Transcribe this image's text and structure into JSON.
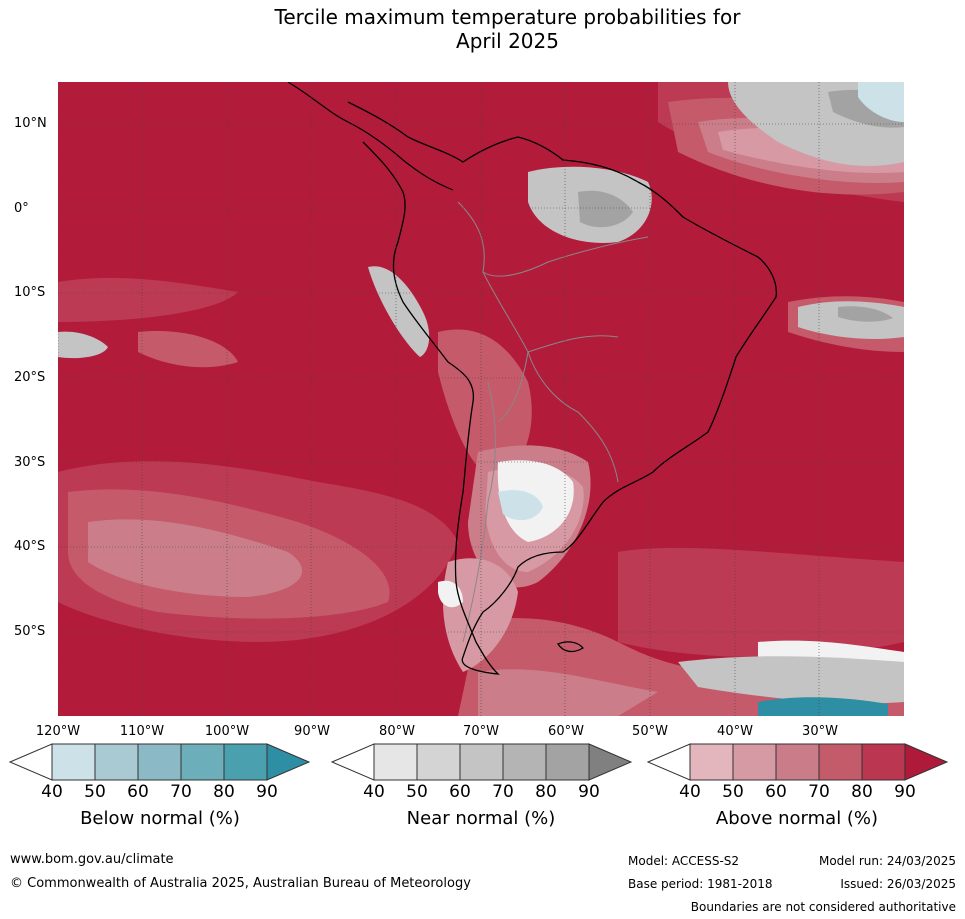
{
  "title_line1": "Tercile maximum temperature probabilities for",
  "title_line2": "April 2025",
  "map": {
    "lat_labels": [
      "10°N",
      "0°",
      "10°S",
      "20°S",
      "30°S",
      "40°S",
      "50°S"
    ],
    "lon_labels": [
      "120°W",
      "110°W",
      "100°W",
      "90°W",
      "80°W",
      "70°W",
      "60°W",
      "50°W",
      "40°W",
      "30°W"
    ]
  },
  "colorbars": [
    {
      "label": "Below normal (%)",
      "ticks": [
        "40",
        "50",
        "60",
        "70",
        "80",
        "90"
      ],
      "colors": [
        "#ffffff",
        "#cde2e8",
        "#a9cad3",
        "#8bb9c6",
        "#6caeba",
        "#4ba0b0",
        "#2e8ea3"
      ]
    },
    {
      "label": "Near normal (%)",
      "ticks": [
        "40",
        "50",
        "60",
        "70",
        "80",
        "90"
      ],
      "colors": [
        "#ffffff",
        "#e6e6e6",
        "#d4d4d4",
        "#c4c4c4",
        "#b4b4b4",
        "#a3a3a3",
        "#808080"
      ]
    },
    {
      "label": "Above normal (%)",
      "ticks": [
        "40",
        "50",
        "60",
        "70",
        "80",
        "90"
      ],
      "colors": [
        "#ffffff",
        "#e3b5bd",
        "#d69aa4",
        "#ca7d89",
        "#c45b6b",
        "#ba3651",
        "#b01a3a"
      ]
    }
  ],
  "footer": {
    "website": "www.bom.gov.au/climate",
    "copyright": "© Commonwealth of Australia 2025, Australian Bureau of Meteorology",
    "model": "Model: ACCESS-S2",
    "model_run": "Model run: 24/03/2025",
    "base_period": "Base period: 1981-2018",
    "issued": "Issued: 26/03/2025",
    "boundaries": "Boundaries are not considered authoritative"
  }
}
